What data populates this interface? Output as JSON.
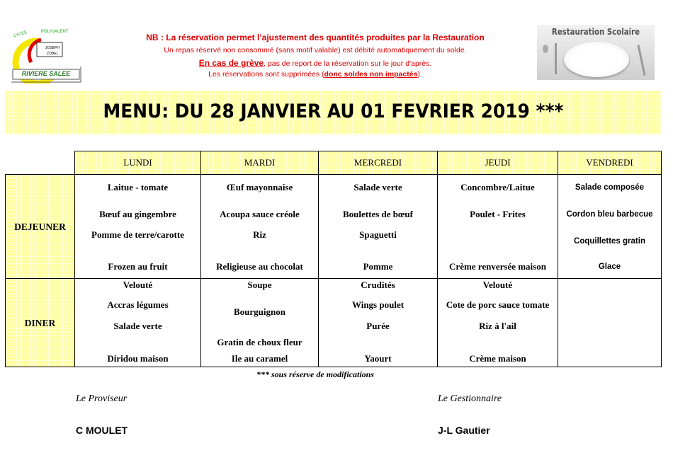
{
  "logo": {
    "top_text": "LYCEE POLYVALENT",
    "middle_text": "JOSEPH ZOBEL",
    "bottom_text": "RIVIERE SALEE"
  },
  "notice": {
    "line1": "NB :  La réservation permet l’ajustement des quantités produites par la Restauration",
    "line2": "Un repas réservé non consommé (sans motif valable) est débité automatiquement du solde.",
    "line3_underlined": "En cas de grève",
    "line3_rest": ", pas de report de la réservation sur le jour d'après.",
    "line4_start": "Les réservations sont supprimées (",
    "line4_underlined": "donc soldes non impactés",
    "line4_end": ")."
  },
  "brand_image": {
    "caption": "Restauration Scolaire"
  },
  "title": "MENU: DU 28 JANVIER AU 01 FEVRIER 2019 ***",
  "colors": {
    "notice_red": "#e00000",
    "header_yellow": "#ffffa0"
  },
  "days": [
    "LUNDI",
    "MARDI",
    "MERCREDI",
    "JEUDI",
    "VENDREDI"
  ],
  "meals": [
    {
      "label": "DEJEUNER",
      "days": [
        [
          "Laitue - tomate",
          "Bœuf au gingembre",
          "Pomme de terre/carotte",
          "Frozen au fruit"
        ],
        [
          "Œuf mayonnaise",
          "Acoupa sauce créole",
          "Riz",
          "Religieuse au chocolat"
        ],
        [
          "Salade verte",
          "Boulettes de bœuf",
          "Spaguetti",
          "Pomme"
        ],
        [
          "Concombre/Laitue",
          "Poulet - Frites",
          "Crème renversée maison"
        ],
        [
          "Salade composée",
          "Cordon bleu barbecue",
          "Coquillettes gratin",
          "Glace"
        ]
      ]
    },
    {
      "label": "DINER",
      "days": [
        [
          "Velouté",
          "Accras légumes",
          "Salade verte",
          "Diridou maison"
        ],
        [
          "Soupe",
          "Bourguignon",
          "Gratin de choux fleur",
          "Ile au caramel"
        ],
        [
          "Crudités",
          "Wings poulet",
          "Purée",
          "Yaourt"
        ],
        [
          "Velouté",
          "Cote de porc sauce tomate",
          "Riz à l'ail",
          "Crème maison"
        ],
        []
      ]
    }
  ],
  "footnote": "*** sous réserve de modifications",
  "signatures": [
    {
      "title": "Le Proviseur",
      "name": "C MOULET"
    },
    {
      "title": "Le Gestionnaire",
      "name": "J-L Gautier"
    }
  ]
}
